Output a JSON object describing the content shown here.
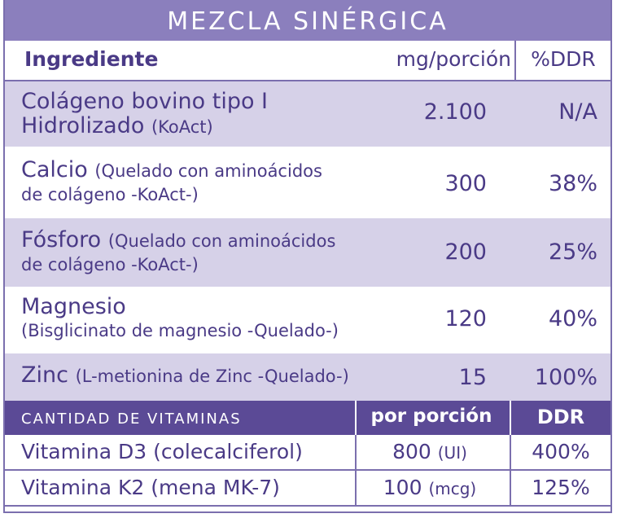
{
  "title": "MEZCLA SINÉRGICA",
  "columns": {
    "ingredient": "Ingrediente",
    "mg": "mg/porción",
    "ddr": "%DDR"
  },
  "ingredients": [
    {
      "name": "Colágeno bovino tipo I",
      "name2": "Hidrolizado",
      "detail": "(KoAct)",
      "mg": "2.100",
      "ddr": "N/A"
    },
    {
      "name": "Calcio",
      "detail": "(Quelado con aminoácidos",
      "detail2": "de colágeno -KoAct-)",
      "mg": "300",
      "ddr": "38%"
    },
    {
      "name": "Fósforo",
      "detail": "(Quelado con aminoácidos",
      "detail2": "de colágeno -KoAct-)",
      "mg": "200",
      "ddr": "25%"
    },
    {
      "name": "Magnesio",
      "detail": "(Bisglicinato de magnesio -Quelado-)",
      "mg": "120",
      "ddr": "40%"
    },
    {
      "name": "Zinc",
      "detail": "(L-metionina de Zinc -Quelado-)",
      "mg": "15",
      "ddr": "100%"
    }
  ],
  "vitamins_header": {
    "title": "CANTIDAD DE VITAMINAS",
    "per_portion": "por porción",
    "ddr": "DDR"
  },
  "vitamins": [
    {
      "name": "Vitamina D3 (colecalciferol)",
      "amount": "800",
      "unit": "(UI)",
      "ddr": "400%"
    },
    {
      "name": "Vitamina K2 (mena MK-7)",
      "amount": "100",
      "unit": "(mcg)",
      "ddr": "125%"
    }
  ]
}
